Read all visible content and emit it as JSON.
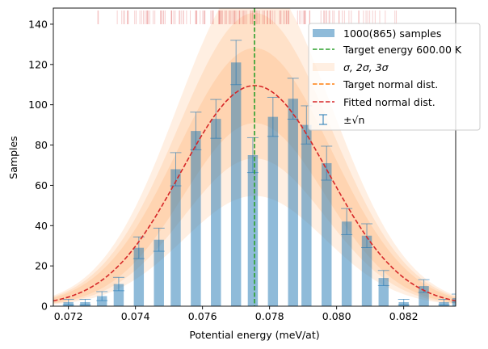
{
  "chart_data": {
    "type": "bar",
    "xlabel": "Potential energy (meV/at)",
    "ylabel": "Samples",
    "xlim": [
      0.07155,
      0.08355
    ],
    "ylim": [
      0,
      148
    ],
    "x_ticks": [
      "0.072",
      "0.074",
      "0.076",
      "0.078",
      "0.080",
      "0.082"
    ],
    "x_tick_values": [
      0.072,
      0.074,
      0.076,
      0.078,
      0.08,
      0.082
    ],
    "y_ticks": [
      "0",
      "20",
      "40",
      "60",
      "80",
      "100",
      "120",
      "140"
    ],
    "y_tick_values": [
      0,
      20,
      40,
      60,
      80,
      100,
      120,
      140
    ],
    "bar_width": 0.0003,
    "categories": [
      0.072,
      0.0725,
      0.073,
      0.0735,
      0.0741,
      0.0747,
      0.0752,
      0.0758,
      0.0764,
      0.077,
      0.0775,
      0.0781,
      0.0787,
      0.0791,
      0.0797,
      0.0803,
      0.0809,
      0.0814,
      0.082,
      0.0826,
      0.0832,
      0.0836
    ],
    "series": [
      {
        "name": "1000(865) samples",
        "color": "#1f77b4",
        "values": [
          2,
          2,
          5,
          11,
          29,
          33,
          68,
          87,
          93,
          121,
          75,
          94,
          103,
          90,
          71,
          42,
          35,
          14,
          2,
          10,
          2,
          4
        ]
      }
    ],
    "error_bars": {
      "name": "±√n",
      "color": "#1f77b4"
    },
    "target_energy": {
      "name": "Target energy 600.00 K",
      "x": 0.07755,
      "color": "#2ca02c"
    },
    "bands": {
      "name": "σ, 2σ, 3σ",
      "color": "#ff7f0e"
    },
    "target_normal": {
      "name": "Target normal dist.",
      "color": "#ff7f0e"
    },
    "fitted_normal": {
      "name": "Fitted normal dist.",
      "mean": 0.07755,
      "sigma": 0.0022,
      "peak": 109.5,
      "color": "#d62728"
    },
    "rug_color": "#d62728",
    "legend_position": "upper right",
    "legend": [
      "1000(865) samples",
      "Target energy 600.00 K",
      "σ, 2σ, 3σ",
      "Target normal dist.",
      "Fitted normal dist.",
      "±√n"
    ]
  }
}
